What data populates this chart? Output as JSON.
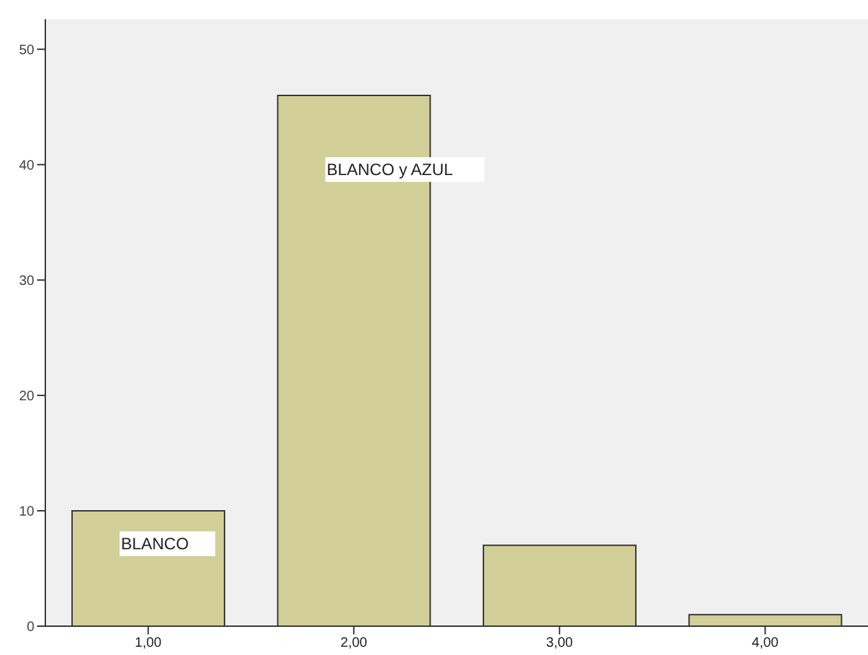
{
  "chart_data": {
    "type": "bar",
    "categories": [
      "1,00",
      "2,00",
      "3,00",
      "4,00"
    ],
    "values": [
      10,
      46,
      7,
      1
    ],
    "color": "#d3cf98",
    "ylim": [
      0,
      52.6
    ],
    "yticks": [
      0,
      10,
      20,
      30,
      40,
      50
    ],
    "grid": false,
    "legend": false,
    "annotations": [
      "BLANCO",
      "BLANCO y AZUL"
    ]
  }
}
